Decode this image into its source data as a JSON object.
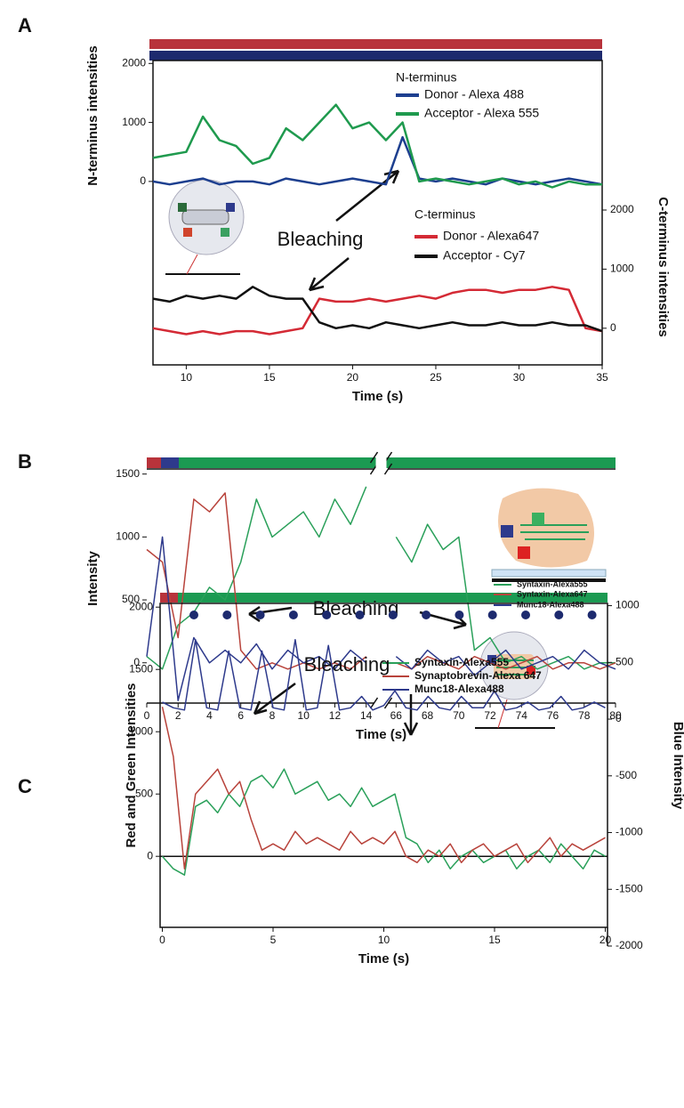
{
  "chart_data": [
    {
      "panel": "A",
      "type": "line",
      "xlabel": "Time (s)",
      "ylabel": "N-terminus intensities",
      "y2label": "C-terminus intensities",
      "x": [
        8,
        9,
        10,
        11,
        12,
        13,
        14,
        15,
        16,
        17,
        18,
        19,
        20,
        21,
        22,
        23,
        24,
        25,
        26,
        27,
        28,
        29,
        30,
        31,
        32,
        33,
        34,
        35
      ],
      "xlim": [
        8,
        35
      ],
      "xticks": [
        10,
        15,
        20,
        25,
        30,
        35
      ],
      "ylim": [
        -3110,
        2050
      ],
      "yticks": [
        0,
        1000,
        2000
      ],
      "y2lim": [
        -620,
        4530
      ],
      "y2ticks": [
        0,
        1000,
        2000
      ],
      "legend_titles": [
        "N-terminus",
        "C-terminus"
      ],
      "annotation": "Bleaching",
      "series": [
        {
          "name": "Donor - Alexa 488",
          "color": "#1d3f8f",
          "values": [
            0,
            -50,
            0,
            50,
            -50,
            0,
            0,
            -50,
            50,
            0,
            -50,
            0,
            50,
            0,
            -50,
            750,
            50,
            0,
            50,
            0,
            -50,
            50,
            0,
            -50,
            0,
            50,
            0,
            -50
          ]
        },
        {
          "name": "Acceptor - Alexa 555",
          "color": "#1f9a4e",
          "values": [
            400,
            450,
            500,
            1100,
            700,
            600,
            300,
            400,
            900,
            700,
            1000,
            1300,
            900,
            1000,
            700,
            1000,
            0,
            50,
            0,
            -50,
            0,
            50,
            -50,
            0,
            -100,
            0,
            -50,
            -50
          ]
        },
        {
          "name": "Donor - Alexa647",
          "color": "#d42a35",
          "axis": "y2",
          "values": [
            0,
            -50,
            -100,
            -50,
            -100,
            -50,
            -50,
            -100,
            -50,
            0,
            500,
            450,
            450,
            500,
            450,
            500,
            550,
            500,
            600,
            650,
            650,
            600,
            650,
            650,
            700,
            650,
            0,
            -50
          ]
        },
        {
          "name": "Acceptor - Cy7",
          "color": "#111111",
          "axis": "y2",
          "values": [
            500,
            450,
            550,
            500,
            550,
            500,
            700,
            550,
            500,
            500,
            100,
            0,
            50,
            0,
            100,
            50,
            0,
            50,
            100,
            50,
            50,
            100,
            50,
            50,
            100,
            50,
            50,
            -50
          ]
        }
      ]
    },
    {
      "panel": "B",
      "type": "line",
      "xlabel": "Time (s)",
      "ylabel": "Intensity",
      "x": [
        0,
        1,
        2,
        3,
        4,
        5,
        6,
        7,
        8,
        9,
        10,
        11,
        12,
        13,
        14,
        66,
        67,
        68,
        69,
        70,
        71,
        72,
        73,
        74,
        75,
        76,
        77,
        78,
        79,
        80
      ],
      "xlim": [
        0,
        80
      ],
      "xbreak": [
        14.5,
        65.5
      ],
      "xticks": [
        0,
        2,
        4,
        6,
        8,
        10,
        12,
        14,
        66,
        68,
        70,
        72,
        74,
        76,
        78,
        80
      ],
      "ylim": [
        -320,
        1540
      ],
      "yticks": [
        0,
        500,
        1000,
        1500
      ],
      "annotation": "Bleaching",
      "series": [
        {
          "name": "Syntaxin-Alexa555",
          "color": "#2aa05a",
          "values": [
            50,
            -50,
            300,
            400,
            600,
            500,
            800,
            1300,
            1000,
            1100,
            1200,
            1000,
            1300,
            1100,
            1400,
            1000,
            800,
            1100,
            900,
            1000,
            100,
            200,
            0,
            50,
            -50,
            0,
            50,
            -50,
            0,
            0
          ]
        },
        {
          "name": "Syntaxin-Alexa647",
          "color": "#b8433b",
          "values": [
            900,
            800,
            200,
            1300,
            1200,
            1350,
            100,
            -50,
            0,
            -50,
            0,
            -50,
            0,
            -50,
            50,
            0,
            -50,
            50,
            0,
            -50,
            50,
            0,
            -50,
            0,
            50,
            -50,
            0,
            0,
            -50,
            0
          ]
        },
        {
          "name": "Munc18-Alexa488",
          "color": "#2e3a8c",
          "values": [
            50,
            1000,
            -300,
            200,
            0,
            100,
            0,
            150,
            -50,
            100,
            0,
            50,
            -50,
            100,
            0,
            50,
            -50,
            100,
            0,
            50,
            -100,
            0,
            100,
            -50,
            0,
            50,
            -50,
            100,
            0,
            -50
          ]
        }
      ]
    },
    {
      "panel": "C",
      "type": "line",
      "xlabel": "Time (s)",
      "ylabel": "Red and Green Intensities",
      "y2label": "Blue Intensity",
      "x": [
        0,
        0.5,
        1,
        1.5,
        2,
        2.5,
        3,
        3.5,
        4,
        4.5,
        5,
        5.5,
        6,
        6.5,
        7,
        7.5,
        8,
        8.5,
        9,
        9.5,
        10,
        10.5,
        11,
        11.5,
        12,
        12.5,
        13,
        13.5,
        14,
        14.5,
        15,
        15.5,
        16,
        16.5,
        17,
        17.5,
        18,
        18.5,
        19,
        19.5,
        20
      ],
      "xlim": [
        -0.1,
        20.1
      ],
      "xticks": [
        0,
        5,
        10,
        15,
        20
      ],
      "ylim": [
        -570,
        2030
      ],
      "yticks": [
        0,
        500,
        1000,
        1500,
        2000
      ],
      "y2lim": [
        -2000,
        1020
      ],
      "y2ticks": [
        -2000,
        -1500,
        -1000,
        -500,
        0,
        500,
        1000
      ],
      "zero_line": true,
      "annotation": "Bleaching",
      "series": [
        {
          "name": "Syntaxin-Alexa555",
          "color": "#2aa05a",
          "values": [
            0,
            -100,
            -150,
            400,
            450,
            350,
            500,
            400,
            600,
            650,
            550,
            700,
            500,
            550,
            600,
            450,
            500,
            400,
            550,
            400,
            450,
            500,
            150,
            100,
            -50,
            50,
            -100,
            0,
            50,
            -50,
            0,
            50,
            -100,
            0,
            50,
            -50,
            100,
            0,
            -100,
            50,
            0
          ]
        },
        {
          "name": "Synaptobrevin-Alexa 647",
          "color": "#b8433b",
          "values": [
            1200,
            800,
            -100,
            500,
            600,
            700,
            500,
            600,
            300,
            50,
            100,
            50,
            200,
            100,
            150,
            100,
            50,
            200,
            100,
            150,
            100,
            200,
            0,
            -50,
            50,
            0,
            100,
            -50,
            50,
            100,
            0,
            50,
            100,
            -50,
            50,
            150,
            0,
            100,
            50,
            100,
            150
          ]
        },
        {
          "name": "Munc18-Alexa488",
          "color": "#2e3a8c",
          "axis": "y2",
          "values": [
            150,
            100,
            80,
            700,
            100,
            80,
            600,
            100,
            80,
            600,
            100,
            80,
            700,
            80,
            100,
            650,
            80,
            100,
            200,
            80,
            120,
            250,
            100,
            80,
            200,
            100,
            80,
            200,
            100,
            100,
            250,
            80,
            100,
            150,
            80,
            100,
            200,
            80,
            100,
            150,
            100
          ]
        }
      ]
    }
  ]
}
